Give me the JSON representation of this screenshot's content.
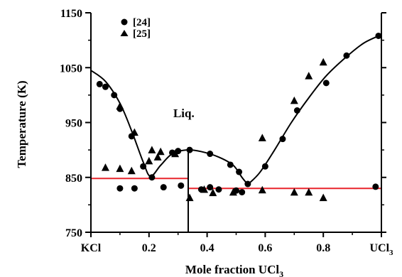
{
  "chart_data": {
    "type": "scatter",
    "xlabel": "Mole fraction UCl",
    "xlabel_subscript": "3",
    "ylabel": "Temperature (K)",
    "xlim": [
      0,
      1
    ],
    "ylim": [
      750,
      1150
    ],
    "x_ticks": [
      {
        "value": 0.0,
        "label": "KCl",
        "sub": ""
      },
      {
        "value": 0.2,
        "label": "0.2",
        "sub": ""
      },
      {
        "value": 0.4,
        "label": "0.4",
        "sub": ""
      },
      {
        "value": 0.6,
        "label": "0.6",
        "sub": ""
      },
      {
        "value": 0.8,
        "label": "0.8",
        "sub": ""
      },
      {
        "value": 1.0,
        "label": "UCl",
        "sub": "3"
      }
    ],
    "y_ticks": [
      {
        "value": 750,
        "label": "750"
      },
      {
        "value": 850,
        "label": "850"
      },
      {
        "value": 950,
        "label": "950"
      },
      {
        "value": 1050,
        "label": "1050"
      },
      {
        "value": 1150,
        "label": "1150"
      }
    ],
    "annotations": [
      {
        "text": "Liq.",
        "x": 0.33,
        "y": 960
      }
    ],
    "legend": {
      "position": "top-left"
    },
    "series": [
      {
        "name": "[24]",
        "marker": "circle",
        "points": [
          [
            0.03,
            1020
          ],
          [
            0.05,
            1015
          ],
          [
            0.08,
            1000
          ],
          [
            0.1,
            975
          ],
          [
            0.14,
            925
          ],
          [
            0.18,
            870
          ],
          [
            0.21,
            850
          ],
          [
            0.28,
            895
          ],
          [
            0.3,
            898
          ],
          [
            0.34,
            900
          ],
          [
            0.41,
            893
          ],
          [
            0.48,
            873
          ],
          [
            0.51,
            860
          ],
          [
            0.54,
            838
          ],
          [
            0.6,
            870
          ],
          [
            0.66,
            920
          ],
          [
            0.71,
            972
          ],
          [
            0.81,
            1022
          ],
          [
            0.88,
            1072
          ],
          [
            0.99,
            1108
          ],
          [
            0.1,
            830
          ],
          [
            0.15,
            830
          ],
          [
            0.25,
            832
          ],
          [
            0.31,
            835
          ],
          [
            0.38,
            828
          ],
          [
            0.41,
            832
          ],
          [
            0.44,
            828
          ],
          [
            0.5,
            826
          ],
          [
            0.52,
            823
          ],
          [
            0.98,
            833
          ]
        ]
      },
      {
        "name": "[25]",
        "marker": "triangle",
        "points": [
          [
            0.05,
            868
          ],
          [
            0.1,
            866
          ],
          [
            0.14,
            862
          ],
          [
            0.15,
            932
          ],
          [
            0.2,
            880
          ],
          [
            0.23,
            887
          ],
          [
            0.24,
            897
          ],
          [
            0.29,
            893
          ],
          [
            0.21,
            900
          ],
          [
            0.34,
            813
          ],
          [
            0.39,
            828
          ],
          [
            0.42,
            822
          ],
          [
            0.49,
            823
          ],
          [
            0.59,
            827
          ],
          [
            0.59,
            922
          ],
          [
            0.7,
            990
          ],
          [
            0.7,
            823
          ],
          [
            0.75,
            1035
          ],
          [
            0.75,
            823
          ],
          [
            0.8,
            1060
          ],
          [
            0.8,
            813
          ],
          [
            0.1,
            980
          ]
        ]
      }
    ],
    "fitted_curves": [
      {
        "points": [
          [
            0.0,
            1045
          ],
          [
            0.05,
            1025
          ],
          [
            0.1,
            985
          ],
          [
            0.14,
            935
          ],
          [
            0.18,
            878
          ],
          [
            0.205,
            852
          ],
          [
            0.24,
            872
          ],
          [
            0.28,
            893
          ],
          [
            0.33,
            900
          ],
          [
            0.38,
            897
          ],
          [
            0.44,
            887
          ],
          [
            0.49,
            872
          ],
          [
            0.52,
            850
          ],
          [
            0.54,
            837
          ]
        ]
      },
      {
        "points": [
          [
            0.54,
            837
          ],
          [
            0.58,
            858
          ],
          [
            0.63,
            898
          ],
          [
            0.69,
            950
          ],
          [
            0.75,
            995
          ],
          [
            0.81,
            1035
          ],
          [
            0.88,
            1070
          ],
          [
            0.94,
            1095
          ],
          [
            1.0,
            1110
          ]
        ]
      }
    ],
    "vertical_line": {
      "x": 0.335,
      "y_from": 750,
      "y_to": 905
    },
    "red_lines": [
      {
        "x_from": 0.0,
        "x_to": 0.335,
        "y": 848
      },
      {
        "x_from": 0.335,
        "x_to": 1.0,
        "y": 830
      }
    ],
    "colors": {
      "axis": "#000000",
      "curve": "#000000",
      "isotherm": "#e8242c",
      "marker": "#000000"
    }
  }
}
